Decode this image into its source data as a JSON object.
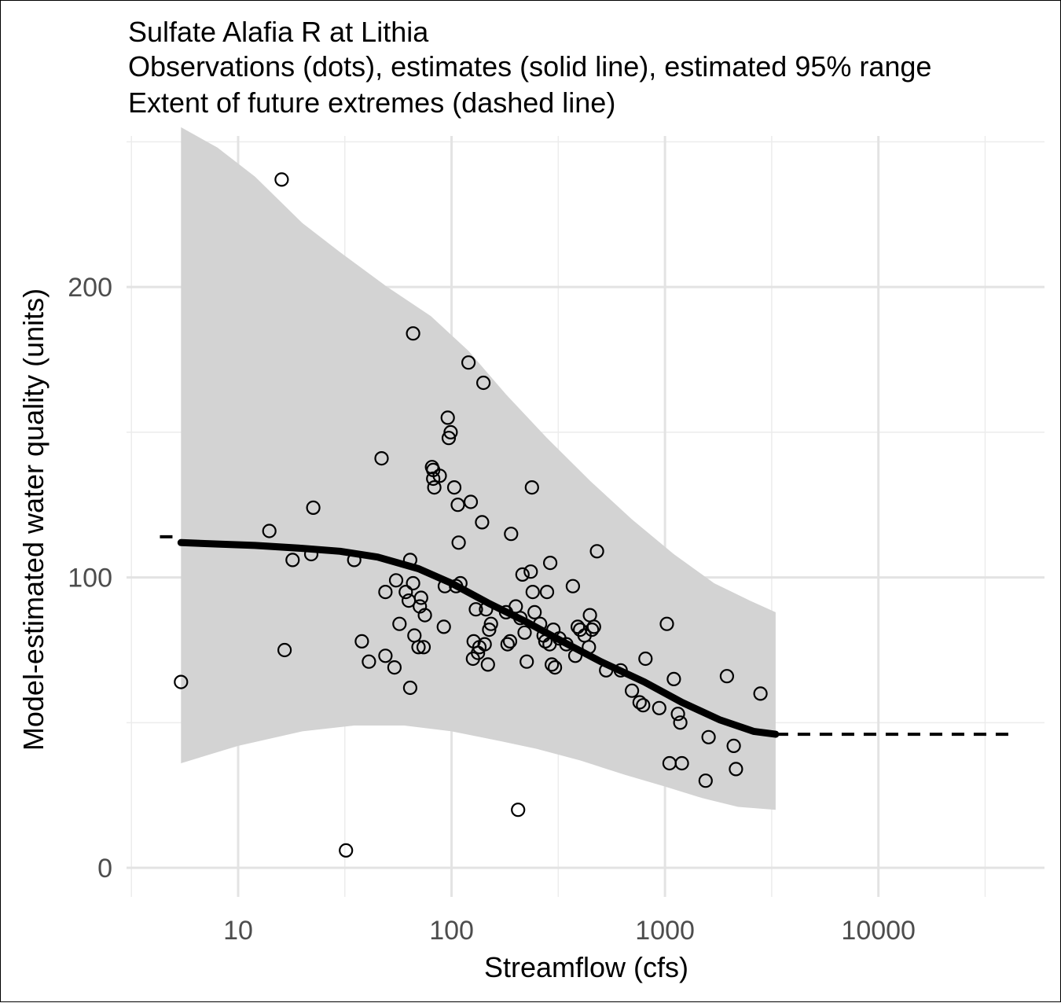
{
  "chart_data": {
    "type": "scatter",
    "title_lines": [
      "Sulfate Alafia R at Lithia",
      "Observations (dots), estimates (solid line), estimated 95% range",
      "Extent of future extremes (dashed line)"
    ],
    "xlabel": "Streamflow (cfs)",
    "ylabel": "Model-estimated water quality (units)",
    "x_scale": "log10",
    "xlim": [
      3,
      60000
    ],
    "ylim": [
      -10,
      252
    ],
    "x_ticks": [
      {
        "value": 10,
        "label": "10"
      },
      {
        "value": 100,
        "label": "100"
      },
      {
        "value": 1000,
        "label": "1000"
      },
      {
        "value": 10000,
        "label": "10000"
      }
    ],
    "y_ticks": [
      {
        "value": 0,
        "label": "0"
      },
      {
        "value": 100,
        "label": "100"
      },
      {
        "value": 200,
        "label": "200"
      }
    ],
    "y_minor_ticks": [
      50,
      150,
      250
    ],
    "grid": true,
    "band_color": "#d3d3d3",
    "line_color": "#000000",
    "estimate_line": [
      [
        5.4,
        112
      ],
      [
        8,
        111.5
      ],
      [
        12,
        111
      ],
      [
        20,
        110
      ],
      [
        30,
        109
      ],
      [
        45,
        107
      ],
      [
        70,
        103
      ],
      [
        100,
        98
      ],
      [
        150,
        91
      ],
      [
        220,
        85
      ],
      [
        330,
        78
      ],
      [
        500,
        71
      ],
      [
        800,
        64
      ],
      [
        1200,
        57
      ],
      [
        1800,
        51
      ],
      [
        2600,
        47
      ],
      [
        3300,
        46
      ]
    ],
    "band_upper": [
      [
        5.4,
        255
      ],
      [
        8,
        248
      ],
      [
        12,
        238
      ],
      [
        20,
        222
      ],
      [
        30,
        212
      ],
      [
        50,
        200
      ],
      [
        80,
        190
      ],
      [
        120,
        178
      ],
      [
        180,
        163
      ],
      [
        280,
        148
      ],
      [
        450,
        133
      ],
      [
        700,
        120
      ],
      [
        1100,
        108
      ],
      [
        1700,
        98
      ],
      [
        2500,
        92
      ],
      [
        3300,
        88
      ]
    ],
    "band_lower": [
      [
        5.4,
        36
      ],
      [
        10,
        42
      ],
      [
        20,
        47
      ],
      [
        35,
        49
      ],
      [
        60,
        49
      ],
      [
        100,
        47
      ],
      [
        160,
        44
      ],
      [
        250,
        41
      ],
      [
        400,
        37
      ],
      [
        650,
        32
      ],
      [
        1000,
        28
      ],
      [
        1500,
        24
      ],
      [
        2200,
        21
      ],
      [
        3300,
        20
      ]
    ],
    "dashed_lines": [
      {
        "x": [
          4.3,
          5.4
        ],
        "y": [
          114,
          114
        ]
      },
      {
        "x": [
          3300,
          42000
        ],
        "y": [
          46,
          46
        ]
      }
    ],
    "observations": [
      [
        5.4,
        64
      ],
      [
        14,
        116
      ],
      [
        16,
        237
      ],
      [
        16.5,
        75
      ],
      [
        18,
        106
      ],
      [
        22,
        108
      ],
      [
        22.5,
        124
      ],
      [
        32,
        6
      ],
      [
        35,
        106
      ],
      [
        38,
        78
      ],
      [
        41,
        71
      ],
      [
        47,
        141
      ],
      [
        49,
        95
      ],
      [
        49,
        73
      ],
      [
        54,
        69
      ],
      [
        55,
        99
      ],
      [
        57,
        84
      ],
      [
        61,
        95
      ],
      [
        63,
        92
      ],
      [
        64,
        106
      ],
      [
        64,
        62
      ],
      [
        66,
        184
      ],
      [
        66,
        98
      ],
      [
        67,
        80
      ],
      [
        70,
        76
      ],
      [
        71,
        90
      ],
      [
        72,
        93
      ],
      [
        74,
        76
      ],
      [
        75,
        87
      ],
      [
        81,
        138
      ],
      [
        82,
        137
      ],
      [
        82,
        134
      ],
      [
        83,
        131
      ],
      [
        88,
        135
      ],
      [
        92,
        83
      ],
      [
        93,
        97
      ],
      [
        96,
        155
      ],
      [
        97,
        148
      ],
      [
        99,
        150
      ],
      [
        103,
        131
      ],
      [
        105,
        97
      ],
      [
        107,
        125
      ],
      [
        108,
        112
      ],
      [
        110,
        98
      ],
      [
        120,
        174
      ],
      [
        123,
        126
      ],
      [
        126,
        72
      ],
      [
        127,
        78
      ],
      [
        130,
        89
      ],
      [
        133,
        74
      ],
      [
        135,
        76
      ],
      [
        139,
        119
      ],
      [
        141,
        167
      ],
      [
        143,
        77
      ],
      [
        145,
        89
      ],
      [
        148,
        70
      ],
      [
        150,
        82
      ],
      [
        153,
        84
      ],
      [
        180,
        88
      ],
      [
        183,
        77
      ],
      [
        188,
        78
      ],
      [
        190,
        115
      ],
      [
        200,
        90
      ],
      [
        205,
        20
      ],
      [
        210,
        86
      ],
      [
        215,
        101
      ],
      [
        220,
        81
      ],
      [
        225,
        71
      ],
      [
        235,
        102
      ],
      [
        238,
        131
      ],
      [
        240,
        95
      ],
      [
        245,
        88
      ],
      [
        260,
        84
      ],
      [
        270,
        80
      ],
      [
        275,
        78
      ],
      [
        280,
        95
      ],
      [
        288,
        77
      ],
      [
        290,
        105
      ],
      [
        295,
        70
      ],
      [
        300,
        82
      ],
      [
        305,
        69
      ],
      [
        320,
        79
      ],
      [
        345,
        77
      ],
      [
        370,
        97
      ],
      [
        380,
        73
      ],
      [
        390,
        83
      ],
      [
        400,
        82
      ],
      [
        420,
        80
      ],
      [
        440,
        76
      ],
      [
        445,
        87
      ],
      [
        455,
        82
      ],
      [
        465,
        83
      ],
      [
        480,
        109
      ],
      [
        530,
        68
      ],
      [
        620,
        68
      ],
      [
        700,
        61
      ],
      [
        760,
        57
      ],
      [
        790,
        56
      ],
      [
        810,
        72
      ],
      [
        940,
        55
      ],
      [
        1020,
        84
      ],
      [
        1050,
        36
      ],
      [
        1100,
        65
      ],
      [
        1150,
        53
      ],
      [
        1180,
        50
      ],
      [
        1200,
        36
      ],
      [
        1550,
        30
      ],
      [
        1600,
        45
      ],
      [
        1950,
        66
      ],
      [
        2100,
        42
      ],
      [
        2150,
        34
      ],
      [
        2800,
        60
      ]
    ]
  }
}
